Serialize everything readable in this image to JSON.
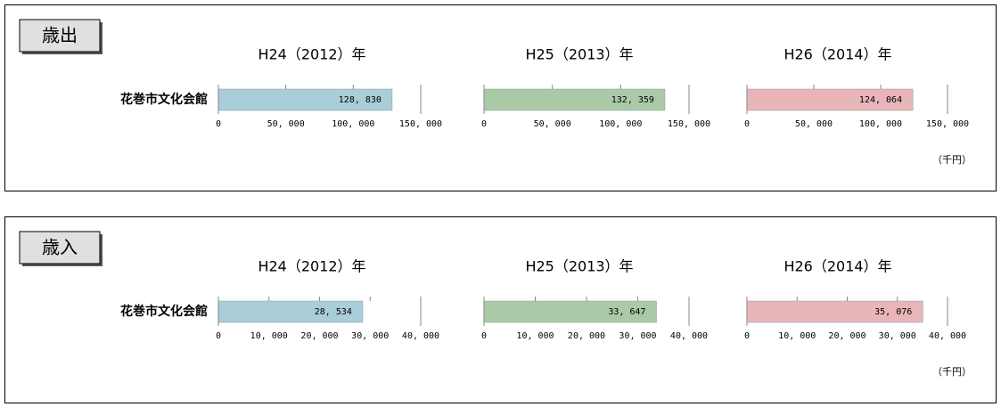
{
  "sections": [
    {
      "label": "歳出",
      "unit": "（千円）"
    },
    {
      "label": "歳入",
      "unit": "（千円）"
    }
  ],
  "chart_data": [
    {
      "type": "bar",
      "title": "H24（2012）年",
      "categories": [
        "花巻市文化会館"
      ],
      "values": [
        128830
      ],
      "value_labels": [
        "128, 830"
      ],
      "color": "#a9cdd9",
      "xlim": [
        0,
        150000
      ],
      "xticks": [
        0,
        {
          "value": 50000,
          "label": "50, 000"
        },
        {
          "value": 100000,
          "label": "100, 000"
        },
        {
          "value": 150000,
          "label": "150, 000"
        }
      ]
    },
    {
      "type": "bar",
      "title": "H25（2013）年",
      "values": [
        132359
      ],
      "value_labels": [
        "132, 359"
      ],
      "color": "#aacaa7",
      "xlim": [
        0,
        150000
      ],
      "xticks": [
        0,
        {
          "value": 50000,
          "label": "50, 000"
        },
        {
          "value": 100000,
          "label": "100, 000"
        },
        {
          "value": 150000,
          "label": "150, 000"
        }
      ]
    },
    {
      "type": "bar",
      "title": "H26（2014）年",
      "values": [
        124064
      ],
      "value_labels": [
        "124, 064"
      ],
      "color": "#e8b5b9",
      "xlim": [
        0,
        150000
      ],
      "xticks": [
        0,
        {
          "value": 50000,
          "label": "50, 000"
        },
        {
          "value": 100000,
          "label": "100, 000"
        },
        {
          "value": 150000,
          "label": "150, 000"
        }
      ]
    },
    {
      "type": "bar",
      "title": "H24（2012）年",
      "categories": [
        "花巻市文化会館"
      ],
      "values": [
        28534
      ],
      "value_labels": [
        "28, 534"
      ],
      "color": "#a9cdd9",
      "xlim": [
        0,
        40000
      ],
      "xticks": [
        0,
        {
          "value": 10000,
          "label": "10, 000"
        },
        {
          "value": 20000,
          "label": "20, 000"
        },
        {
          "value": 30000,
          "label": "30, 000"
        },
        {
          "value": 40000,
          "label": "40, 000"
        }
      ]
    },
    {
      "type": "bar",
      "title": "H25（2013）年",
      "values": [
        33647
      ],
      "value_labels": [
        "33, 647"
      ],
      "color": "#aacaa7",
      "xlim": [
        0,
        40000
      ],
      "xticks": [
        0,
        {
          "value": 10000,
          "label": "10, 000"
        },
        {
          "value": 20000,
          "label": "20, 000"
        },
        {
          "value": 30000,
          "label": "30, 000"
        },
        {
          "value": 40000,
          "label": "40, 000"
        }
      ]
    },
    {
      "type": "bar",
      "title": "H26（2014）年",
      "values": [
        35076
      ],
      "value_labels": [
        "35, 076"
      ],
      "color": "#e8b5b9",
      "xlim": [
        0,
        40000
      ],
      "xticks": [
        0,
        {
          "value": 10000,
          "label": "10, 000"
        },
        {
          "value": 20000,
          "label": "20, 000"
        },
        {
          "value": 30000,
          "label": "30, 000"
        },
        {
          "value": 40000,
          "label": "40, 000"
        }
      ]
    }
  ]
}
